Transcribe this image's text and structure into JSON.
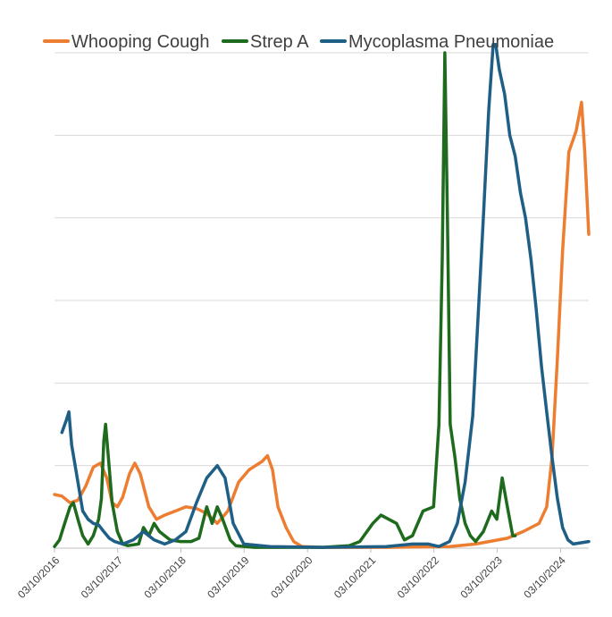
{
  "chart_data": {
    "type": "line",
    "title": "",
    "xlabel": "",
    "ylabel": "",
    "grid": true,
    "legend_position": "top",
    "x_ticks": [
      "03/10/2016",
      "03/10/2017",
      "03/10/2018",
      "03/10/2019",
      "03/10/2020",
      "03/10/2021",
      "03/10/2022",
      "03/10/2023",
      "03/10/2024"
    ],
    "xlim": [
      "2016-10-03",
      "2025-03-15"
    ],
    "ylim": [
      0,
      6
    ],
    "colors": {
      "whooping_cough": "#ED7D31",
      "strep_a": "#1E6B1E",
      "mycoplasma": "#1F5F86",
      "grid": "#D9D9D9",
      "axis": "#BFBFBF"
    },
    "series": [
      {
        "name": "Whooping Cough",
        "color": "#ED7D31",
        "points": [
          [
            "2016-10-03",
            0.65
          ],
          [
            "2016-11-15",
            0.63
          ],
          [
            "2017-01-01",
            0.55
          ],
          [
            "2017-02-15",
            0.58
          ],
          [
            "2017-04-01",
            0.75
          ],
          [
            "2017-05-15",
            0.98
          ],
          [
            "2017-06-25",
            1.03
          ],
          [
            "2017-08-01",
            0.85
          ],
          [
            "2017-09-01",
            0.55
          ],
          [
            "2017-10-01",
            0.5
          ],
          [
            "2017-11-01",
            0.62
          ],
          [
            "2017-12-10",
            0.9
          ],
          [
            "2018-01-10",
            1.03
          ],
          [
            "2018-02-10",
            0.9
          ],
          [
            "2018-04-01",
            0.5
          ],
          [
            "2018-05-15",
            0.35
          ],
          [
            "2018-07-01",
            0.4
          ],
          [
            "2018-09-01",
            0.45
          ],
          [
            "2018-11-01",
            0.5
          ],
          [
            "2019-01-01",
            0.48
          ],
          [
            "2019-03-01",
            0.42
          ],
          [
            "2019-05-01",
            0.3
          ],
          [
            "2019-07-01",
            0.45
          ],
          [
            "2019-09-01",
            0.8
          ],
          [
            "2019-11-01",
            0.95
          ],
          [
            "2020-01-15",
            1.05
          ],
          [
            "2020-02-15",
            1.12
          ],
          [
            "2020-03-15",
            0.95
          ],
          [
            "2020-04-15",
            0.5
          ],
          [
            "2020-06-01",
            0.25
          ],
          [
            "2020-07-15",
            0.08
          ],
          [
            "2020-09-01",
            0.02
          ],
          [
            "2021-01-01",
            0.01
          ],
          [
            "2022-01-01",
            0.01
          ],
          [
            "2023-01-01",
            0.02
          ],
          [
            "2023-06-01",
            0.05
          ],
          [
            "2023-12-01",
            0.12
          ],
          [
            "2024-03-01",
            0.2
          ],
          [
            "2024-06-01",
            0.3
          ],
          [
            "2024-07-15",
            0.5
          ],
          [
            "2024-08-15",
            1.1
          ],
          [
            "2024-09-15",
            2.3
          ],
          [
            "2024-10-15",
            3.6
          ],
          [
            "2024-11-20",
            4.8
          ],
          [
            "2025-01-01",
            5.05
          ],
          [
            "2025-02-01",
            5.4
          ],
          [
            "2025-02-20",
            4.8
          ],
          [
            "2025-03-15",
            3.8
          ]
        ]
      },
      {
        "name": "Strep A",
        "color": "#1E6B1E",
        "points": [
          [
            "2016-10-03",
            0.02
          ],
          [
            "2016-11-01",
            0.1
          ],
          [
            "2016-12-01",
            0.3
          ],
          [
            "2017-01-01",
            0.5
          ],
          [
            "2017-01-20",
            0.55
          ],
          [
            "2017-02-15",
            0.35
          ],
          [
            "2017-03-15",
            0.15
          ],
          [
            "2017-04-15",
            0.05
          ],
          [
            "2017-05-15",
            0.15
          ],
          [
            "2017-06-15",
            0.35
          ],
          [
            "2017-07-01",
            0.6
          ],
          [
            "2017-07-15",
            1.3
          ],
          [
            "2017-07-25",
            1.5
          ],
          [
            "2017-08-10",
            1.1
          ],
          [
            "2017-09-01",
            0.55
          ],
          [
            "2017-10-01",
            0.2
          ],
          [
            "2017-11-01",
            0.05
          ],
          [
            "2017-12-01",
            0.03
          ],
          [
            "2018-02-01",
            0.05
          ],
          [
            "2018-03-01",
            0.25
          ],
          [
            "2018-04-01",
            0.15
          ],
          [
            "2018-05-01",
            0.3
          ],
          [
            "2018-06-01",
            0.2
          ],
          [
            "2018-08-01",
            0.1
          ],
          [
            "2018-10-01",
            0.08
          ],
          [
            "2018-12-01",
            0.08
          ],
          [
            "2019-01-15",
            0.12
          ],
          [
            "2019-03-01",
            0.5
          ],
          [
            "2019-04-01",
            0.3
          ],
          [
            "2019-05-01",
            0.5
          ],
          [
            "2019-06-01",
            0.35
          ],
          [
            "2019-07-15",
            0.1
          ],
          [
            "2019-08-15",
            0.03
          ],
          [
            "2019-12-01",
            0.01
          ],
          [
            "2021-01-01",
            0.01
          ],
          [
            "2021-06-01",
            0.03
          ],
          [
            "2021-08-01",
            0.08
          ],
          [
            "2021-10-15",
            0.3
          ],
          [
            "2021-12-01",
            0.4
          ],
          [
            "2022-01-15",
            0.35
          ],
          [
            "2022-03-01",
            0.3
          ],
          [
            "2022-04-15",
            0.1
          ],
          [
            "2022-06-01",
            0.15
          ],
          [
            "2022-08-01",
            0.45
          ],
          [
            "2022-10-01",
            0.5
          ],
          [
            "2022-11-01",
            1.5
          ],
          [
            "2022-11-20",
            3.5
          ],
          [
            "2022-12-05",
            6.0
          ],
          [
            "2022-12-20",
            4.0
          ],
          [
            "2023-01-05",
            1.5
          ],
          [
            "2023-02-01",
            1.1
          ],
          [
            "2023-03-01",
            0.6
          ],
          [
            "2023-04-01",
            0.3
          ],
          [
            "2023-05-01",
            0.15
          ],
          [
            "2023-06-01",
            0.08
          ],
          [
            "2023-07-15",
            0.2
          ],
          [
            "2023-09-01",
            0.45
          ],
          [
            "2023-10-01",
            0.35
          ],
          [
            "2023-11-01",
            0.85
          ],
          [
            "2023-12-01",
            0.5
          ],
          [
            "2024-01-01",
            0.15
          ],
          [
            "2024-01-15",
            0.15
          ]
        ]
      },
      {
        "name": "Mycoplasma Pneumoniae",
        "color": "#1F5F86",
        "points": [
          [
            "2016-11-15",
            1.4
          ],
          [
            "2016-12-10",
            1.55
          ],
          [
            "2016-12-25",
            1.65
          ],
          [
            "2017-01-10",
            1.25
          ],
          [
            "2017-02-15",
            0.8
          ],
          [
            "2017-03-15",
            0.45
          ],
          [
            "2017-04-15",
            0.35
          ],
          [
            "2017-05-15",
            0.3
          ],
          [
            "2017-06-15",
            0.28
          ],
          [
            "2017-07-15",
            0.2
          ],
          [
            "2017-08-15",
            0.12
          ],
          [
            "2017-09-15",
            0.08
          ],
          [
            "2017-11-01",
            0.05
          ],
          [
            "2018-01-01",
            0.1
          ],
          [
            "2018-03-01",
            0.2
          ],
          [
            "2018-05-01",
            0.1
          ],
          [
            "2018-07-01",
            0.05
          ],
          [
            "2018-09-01",
            0.1
          ],
          [
            "2018-11-01",
            0.2
          ],
          [
            "2019-01-01",
            0.55
          ],
          [
            "2019-03-01",
            0.85
          ],
          [
            "2019-05-01",
            1.0
          ],
          [
            "2019-06-15",
            0.85
          ],
          [
            "2019-08-01",
            0.3
          ],
          [
            "2019-10-01",
            0.05
          ],
          [
            "2020-03-01",
            0.02
          ],
          [
            "2021-01-01",
            0.01
          ],
          [
            "2022-01-01",
            0.02
          ],
          [
            "2022-06-01",
            0.05
          ],
          [
            "2022-09-01",
            0.05
          ],
          [
            "2022-11-01",
            0.02
          ],
          [
            "2023-01-01",
            0.08
          ],
          [
            "2023-02-15",
            0.3
          ],
          [
            "2023-04-01",
            0.8
          ],
          [
            "2023-05-15",
            1.6
          ],
          [
            "2023-06-15",
            2.8
          ],
          [
            "2023-07-15",
            4.0
          ],
          [
            "2023-08-15",
            5.3
          ],
          [
            "2023-09-10",
            6.1
          ],
          [
            "2023-09-25",
            6.1
          ],
          [
            "2023-10-15",
            5.8
          ],
          [
            "2023-11-15",
            5.5
          ],
          [
            "2023-12-15",
            5.0
          ],
          [
            "2024-01-15",
            4.75
          ],
          [
            "2024-02-15",
            4.3
          ],
          [
            "2024-03-15",
            4.0
          ],
          [
            "2024-04-15",
            3.5
          ],
          [
            "2024-05-15",
            2.9
          ],
          [
            "2024-06-15",
            2.2
          ],
          [
            "2024-07-15",
            1.65
          ],
          [
            "2024-08-15",
            1.1
          ],
          [
            "2024-09-15",
            0.6
          ],
          [
            "2024-10-15",
            0.25
          ],
          [
            "2024-11-15",
            0.1
          ],
          [
            "2024-12-15",
            0.05
          ],
          [
            "2025-03-15",
            0.08
          ]
        ]
      }
    ]
  }
}
